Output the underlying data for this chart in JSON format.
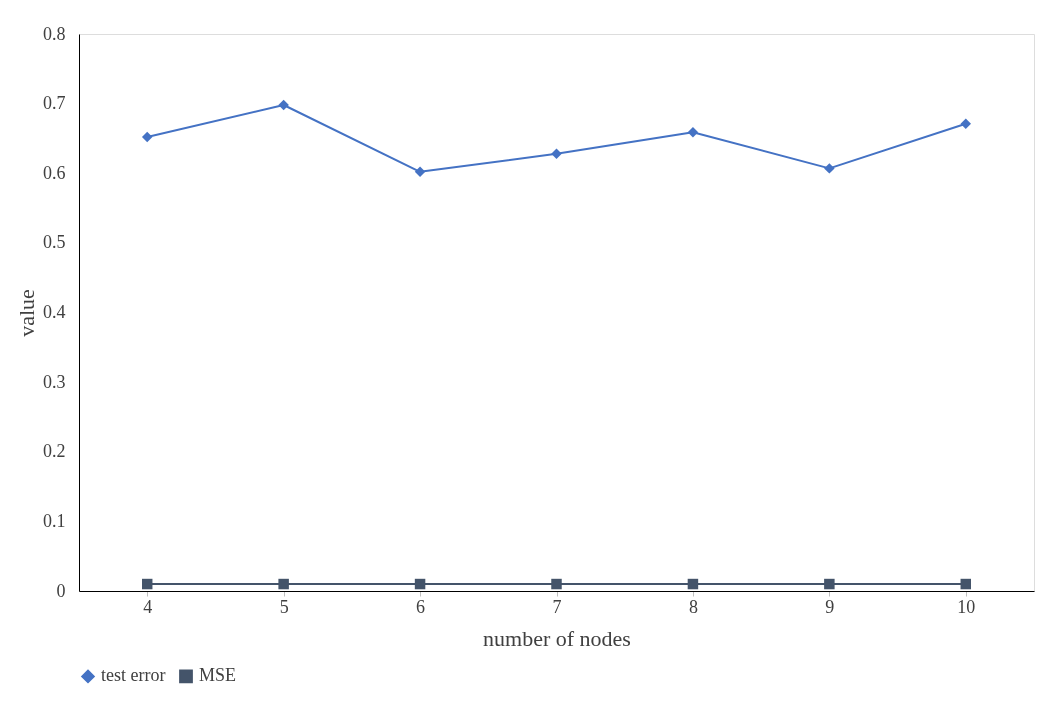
{
  "chart_data": {
    "type": "line",
    "xlabel": "number of nodes",
    "ylabel": "value",
    "categories": [
      "4",
      "5",
      "6",
      "7",
      "8",
      "9",
      "10"
    ],
    "series": [
      {
        "name": "test error",
        "color": "#4472c4",
        "marker": "diamond",
        "values": [
          0.652,
          0.698,
          0.602,
          0.628,
          0.659,
          0.607,
          0.671
        ]
      },
      {
        "name": "MSE",
        "color": "#44546a",
        "marker": "square",
        "values": [
          0.01,
          0.01,
          0.01,
          0.01,
          0.01,
          0.01,
          0.01
        ]
      }
    ],
    "ylim": [
      0,
      0.8
    ],
    "yticks": [
      0,
      0.1,
      0.2,
      0.3,
      0.4,
      0.5,
      0.6,
      0.7,
      0.8
    ],
    "grid": false,
    "legend": "bottom"
  }
}
